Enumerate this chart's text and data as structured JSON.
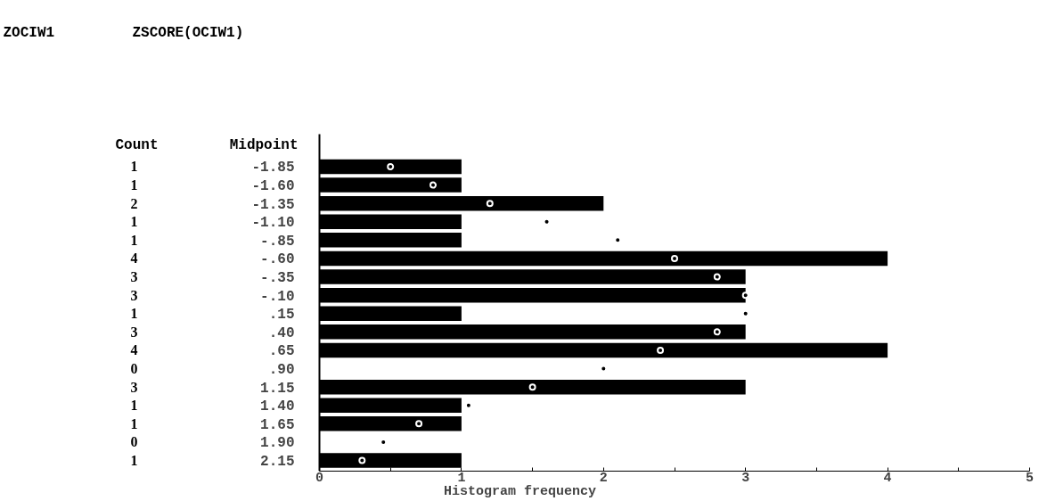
{
  "chart_data": {
    "type": "bar",
    "orientation": "horizontal",
    "title": "ZOCIW1",
    "subtitle": "ZSCORE(OCIW1)",
    "xlabel": "Histogram frequency",
    "ylabel": "Midpoint",
    "annotations": [
      "Count"
    ],
    "categories": [
      "-1.85",
      "-1.60",
      "-1.35",
      "-1.10",
      "-.85",
      "-.60",
      "-.35",
      "-.10",
      ".15",
      ".40",
      ".65",
      ".90",
      "1.15",
      "1.40",
      "1.65",
      "1.90",
      "2.15"
    ],
    "series": [
      {
        "color": "#000000",
        "values": [
          1,
          1,
          2,
          1,
          1,
          4,
          3,
          3,
          1,
          3,
          4,
          0,
          3,
          1,
          1,
          0,
          1
        ],
        "value_labels": [
          "1",
          "1",
          "2",
          "1",
          "1",
          "4",
          "3",
          "3",
          "1",
          "3",
          "4",
          "0",
          "3",
          "1",
          "1",
          "0",
          "1"
        ]
      },
      {
        "type": "scatter",
        "color": "#000000",
        "values": [
          0.5,
          0.8,
          1.2,
          1.6,
          2.1,
          2.5,
          2.8,
          3.0,
          3.0,
          2.8,
          2.4,
          2.0,
          1.5,
          1.05,
          0.7,
          0.45,
          0.3
        ]
      }
    ],
    "marker": "circle",
    "xlim": [
      0,
      5
    ],
    "xticks": [
      0,
      {
        "value": 0.5,
        "label": null
      },
      1,
      {
        "value": 1.5,
        "label": null
      },
      2,
      {
        "value": 2.5,
        "label": null
      },
      3,
      {
        "value": 3.5,
        "label": null
      },
      4,
      {
        "value": 4.5,
        "label": null
      },
      5
    ],
    "grid": false
  }
}
